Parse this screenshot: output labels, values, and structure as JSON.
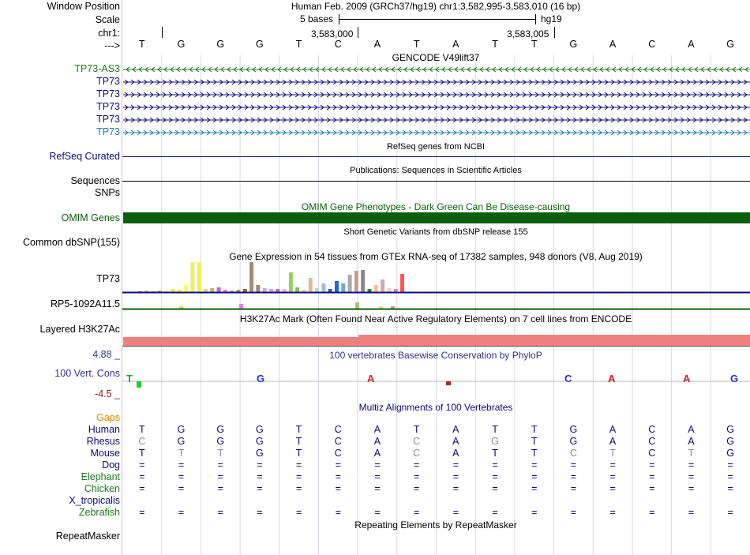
{
  "header": {
    "window_position_label": "Window Position",
    "window_position_value": "Human Feb. 2009 (GRCh37/hg19)   chr1:3,582,995-3,583,010 (16 bp)",
    "scale_label": "Scale",
    "scale_value": "5 bases",
    "assembly": "hg19",
    "chrom_label": "chr1:",
    "pos_tick_1": "3,583,000",
    "pos_tick_2": "3,583,005",
    "strand_label": "--->"
  },
  "sequence": [
    "T",
    "G",
    "G",
    "G",
    "T",
    "C",
    "A",
    "T",
    "A",
    "T",
    "T",
    "G",
    "A",
    "C",
    "A",
    "G"
  ],
  "gencode": {
    "title": "GENCODE V49lift37",
    "genes": [
      {
        "label": "TP73-AS3",
        "color": "#1c7a1c",
        "dir": "left"
      },
      {
        "label": "TP73",
        "color": "#0c0c78",
        "dir": "right"
      },
      {
        "label": "TP73",
        "color": "#0c0c78",
        "dir": "right"
      },
      {
        "label": "TP73",
        "color": "#0c0c78",
        "dir": "right"
      },
      {
        "label": "TP73",
        "color": "#0c0c78",
        "dir": "right"
      },
      {
        "label": "TP73",
        "color": "#1a7ea8",
        "dir": "right"
      }
    ]
  },
  "refseq": {
    "title": "RefSeq genes from NCBI",
    "label": "RefSeq Curated"
  },
  "publications": {
    "title": "Publications: Sequences in Scientific Articles",
    "label": "Sequences"
  },
  "snps_label": "SNPs",
  "omim": {
    "title": "OMIM Gene Phenotypes - Dark Green Can Be Disease-causing",
    "label": "OMIM Genes",
    "color": "#0b5e0b"
  },
  "dbsnp": {
    "title": "Short Genetic Variants from dbSNP release 155",
    "label": "Common dbSNP(155)"
  },
  "gtex": {
    "title": "Gene Expression in 54 tissues from GTEx RNA-seq of 17382 samples, 948 donors (V8, Aug 2019)",
    "gene1": "TP73",
    "gene2": "RP5-1092A11.5"
  },
  "h3k27ac": {
    "title": "H3K27Ac Mark (Often Found Near Active Regulatory Elements) on 7 cell lines from ENCODE",
    "label": "Layered H3K27Ac",
    "color": "#f08080"
  },
  "phylop": {
    "title": "100 vertebrates Basewise Conservation by PhyloP",
    "label": "100 Vert. Cons",
    "max": "4.88 _",
    "min": "-4.5 _"
  },
  "multiz": {
    "title": "Multiz Alignments of 100 Vertebrates",
    "gaps_label": "Gaps",
    "species": [
      {
        "name": "Human",
        "color": "#0c0c78",
        "row": [
          "T",
          "G",
          "G",
          "G",
          "T",
          "C",
          "A",
          "T",
          "A",
          "T",
          "T",
          "G",
          "A",
          "C",
          "A",
          "G"
        ],
        "light": []
      },
      {
        "name": "Rhesus",
        "color": "#0c0c78",
        "row": [
          "C",
          "G",
          "G",
          "G",
          "T",
          "C",
          "A",
          "C",
          "A",
          "G",
          "T",
          "G",
          "A",
          "C",
          "A",
          "G"
        ],
        "light": [
          0,
          7,
          9
        ]
      },
      {
        "name": "Mouse",
        "color": "#0c0c78",
        "row": [
          "T",
          "T",
          "T",
          "G",
          "T",
          "C",
          "A",
          "C",
          "A",
          "T",
          "T",
          "C",
          "T",
          "C",
          "T",
          "G"
        ],
        "light": [
          1,
          2,
          7,
          11,
          12,
          14
        ]
      },
      {
        "name": "Dog",
        "color": "#0c0c78",
        "row": [
          "=",
          "=",
          "=",
          "=",
          "=",
          "=",
          "=",
          "=",
          "=",
          "=",
          "=",
          "=",
          "=",
          "=",
          "=",
          "="
        ],
        "light": []
      },
      {
        "name": "Elephant",
        "color": "#1c7a1c",
        "row": [
          "=",
          "=",
          "=",
          "=",
          "=",
          "=",
          "=",
          "=",
          "=",
          "=",
          "=",
          "=",
          "=",
          "=",
          "=",
          "="
        ],
        "light": []
      },
      {
        "name": "Chicken",
        "color": "#1c7a1c",
        "row": [
          "=",
          "=",
          "=",
          "=",
          "=",
          "=",
          "=",
          "=",
          "=",
          "=",
          "=",
          "=",
          "=",
          "=",
          "=",
          "="
        ],
        "light": []
      },
      {
        "name": "X_tropicalis",
        "color": "#0c0c78",
        "row": [],
        "light": []
      },
      {
        "name": "Zebrafish",
        "color": "#1c7a1c",
        "row": [
          "=",
          "=",
          "=",
          "=",
          "=",
          "=",
          "=",
          "=",
          "=",
          "=",
          "=",
          "=",
          "=",
          "=",
          "=",
          "="
        ],
        "light": []
      }
    ]
  },
  "repeatmasker": {
    "title": "Repeating Elements by RepeatMasker",
    "label": "RepeatMasker"
  }
}
